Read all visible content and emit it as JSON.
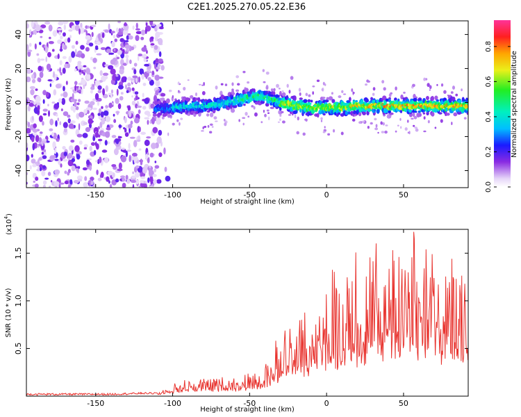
{
  "title": "C2E1.2025.270.05.22.E36",
  "chart_data": [
    {
      "type": "heatmap",
      "title": "C2E1.2025.270.05.22.E36",
      "xlabel": "Height of straight line (km)",
      "ylabel": "Frequency (Hz)",
      "xlim": [
        -195,
        92
      ],
      "ylim": [
        -50,
        48
      ],
      "xticks": [
        -150,
        -100,
        -50,
        0,
        50
      ],
      "xtick_labels": [
        "-150",
        "-100",
        "-50",
        "0",
        "50"
      ],
      "yticks": [
        -40,
        -20,
        0,
        20,
        40
      ],
      "ytick_labels": [
        "-40",
        "-20",
        "0",
        "20",
        "40"
      ],
      "ridge": {
        "description": "dominant frequency band center vs height",
        "x": [
          -110,
          -100,
          -90,
          -80,
          -70,
          -60,
          -50,
          -45,
          -40,
          -30,
          -20,
          -10,
          0,
          10,
          20,
          30,
          40,
          50,
          60,
          70,
          80,
          90
        ],
        "y": [
          -4,
          -3,
          -2,
          -2,
          -1,
          1,
          3,
          4,
          3,
          0,
          -2,
          -3,
          -3,
          -3,
          -2,
          -2,
          -2,
          -2,
          -2,
          -2,
          -2,
          -2
        ]
      },
      "colorbar": {
        "label": "Normalized spectral amplitude",
        "range": [
          0,
          0.95
        ],
        "ticks": [
          0.0,
          0.2,
          0.4,
          0.6,
          0.8
        ],
        "tick_labels": [
          "0.0",
          "0.2",
          "0.4",
          "0.6",
          "0.8"
        ]
      }
    },
    {
      "type": "line",
      "xlabel": "Height of straight line (km)",
      "ylabel": "SNR (10 * v/v)",
      "y_multiplier": "(x10",
      "y_multiplier_exp": "4",
      "y_multiplier_close": ")",
      "xlim": [
        -195,
        92
      ],
      "ylim": [
        0,
        1.75
      ],
      "xticks": [
        -150,
        -100,
        -50,
        0,
        50
      ],
      "xtick_labels": [
        "-150",
        "-100",
        "-50",
        "0",
        "50"
      ],
      "yticks": [
        0.5,
        1.0,
        1.5
      ],
      "ytick_labels": [
        "0.5",
        "1.0",
        "1.5"
      ],
      "series": [
        {
          "name": "SNR",
          "color": "#e8332e",
          "x": [
            -195,
            -180,
            -160,
            -140,
            -120,
            -110,
            -105,
            -100,
            -90,
            -80,
            -70,
            -60,
            -50,
            -45,
            -40,
            -35,
            -30,
            -25,
            -20,
            -15,
            -10,
            -5,
            0,
            5,
            10,
            15,
            20,
            25,
            30,
            35,
            40,
            45,
            50,
            55,
            60,
            65,
            70,
            75,
            80,
            85,
            90
          ],
          "y": [
            0.02,
            0.02,
            0.02,
            0.02,
            0.03,
            0.03,
            0.05,
            0.08,
            0.11,
            0.12,
            0.12,
            0.13,
            0.15,
            0.17,
            0.22,
            0.28,
            0.36,
            0.44,
            0.52,
            0.56,
            0.6,
            0.64,
            0.68,
            0.72,
            0.75,
            0.78,
            0.82,
            0.85,
            0.88,
            0.9,
            0.93,
            0.94,
            0.95,
            0.94,
            0.92,
            0.9,
            0.88,
            0.86,
            0.85,
            0.84,
            0.85
          ]
        }
      ]
    }
  ]
}
